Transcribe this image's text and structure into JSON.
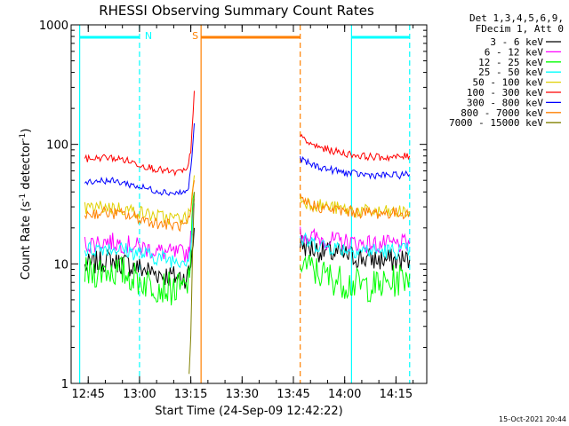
{
  "chart_data": {
    "type": "line",
    "title": "RHESSI Observing Summary Count Rates",
    "xlabel": "Start Time (24-Sep-09 12:42:22)",
    "ylabel": "Count Rate (s",
    "ylabel_sup1": "-1",
    "ylabel_mid": " detector",
    "ylabel_sup2": "-1",
    "ylabel_end": ")",
    "yscale": "log",
    "xlim": [
      "12:40",
      "14:24"
    ],
    "ylim": [
      1,
      1000
    ],
    "x_ticks": [
      "12:45",
      "13:00",
      "13:15",
      "13:30",
      "13:45",
      "14:00",
      "14:15"
    ],
    "y_ticks": [
      {
        "value": 1,
        "label": "1"
      },
      {
        "value": 10,
        "label": "10"
      },
      {
        "value": 100,
        "label": "100"
      },
      {
        "value": 1000,
        "label": "1000"
      }
    ],
    "legend_header": [
      "Det 1,3,4,5,6,9,",
      "FDecim 1, Att 0"
    ],
    "legend_position": "right",
    "data_gap": [
      "13:17",
      "13:47"
    ],
    "series": [
      {
        "name": "3 - 6 keV",
        "color": "#000000",
        "x": [
          "12:44",
          "12:50",
          "12:55",
          "13:00",
          "13:05",
          "13:10",
          "13:14",
          "13:15",
          "13:16",
          "13:47",
          "13:50",
          "13:55",
          "14:00",
          "14:05",
          "14:10",
          "14:15",
          "14:19"
        ],
        "y": [
          9.5,
          10.8,
          10.2,
          9.2,
          8.4,
          7.8,
          7.8,
          10,
          20,
          15,
          13.5,
          12.5,
          11.8,
          11.2,
          10.8,
          10.7,
          10.8
        ]
      },
      {
        "name": "6 - 12 keV",
        "color": "#ff00ff",
        "x": [
          "12:44",
          "12:50",
          "12:55",
          "13:00",
          "13:05",
          "13:10",
          "13:14",
          "13:15",
          "13:16",
          "13:47",
          "13:50",
          "13:55",
          "14:00",
          "14:05",
          "14:10",
          "14:15",
          "14:19"
        ],
        "y": [
          14.5,
          15.5,
          14.8,
          13.8,
          12.8,
          12.2,
          12.3,
          16,
          35,
          18,
          16.8,
          15.8,
          15.2,
          14.8,
          14.5,
          14.5,
          14.7
        ]
      },
      {
        "name": "12 - 25 keV",
        "color": "#00ff00",
        "x": [
          "12:44",
          "12:50",
          "12:55",
          "13:00",
          "13:05",
          "13:10",
          "13:14",
          "13:15",
          "13:16",
          "13:47",
          "13:50",
          "13:55",
          "14:00",
          "14:05",
          "14:10",
          "14:15",
          "14:19"
        ],
        "y": [
          8.2,
          9,
          8.5,
          7.3,
          6.6,
          6.1,
          6.2,
          12,
          40,
          11,
          9,
          7.8,
          7,
          6.6,
          6.5,
          7.2,
          8.2
        ]
      },
      {
        "name": "25 - 50 keV",
        "color": "#00ffff",
        "x": [
          "12:44",
          "12:50",
          "12:55",
          "13:00",
          "13:05",
          "13:10",
          "13:14",
          "13:15",
          "13:16",
          "13:47",
          "13:50",
          "13:55",
          "14:00",
          "14:05",
          "14:10",
          "14:15",
          "14:19"
        ],
        "y": [
          13,
          13.8,
          13.2,
          12.2,
          11.4,
          10.8,
          10.9,
          14,
          32,
          16,
          15,
          14,
          13.4,
          13,
          12.8,
          12.8,
          13
        ]
      },
      {
        "name": "50 - 100 keV",
        "color": "#e0d000",
        "x": [
          "12:44",
          "12:50",
          "12:55",
          "13:00",
          "13:05",
          "13:10",
          "13:14",
          "13:15",
          "13:16",
          "13:47",
          "13:50",
          "13:55",
          "14:00",
          "14:05",
          "14:10",
          "14:15",
          "14:19"
        ],
        "y": [
          29,
          30,
          29,
          27,
          25,
          24,
          24,
          30,
          55,
          35,
          32,
          30,
          28.5,
          27.5,
          27,
          27,
          27.5
        ]
      },
      {
        "name": "100 - 300 keV",
        "color": "#ff0000",
        "x": [
          "12:44",
          "12:50",
          "12:55",
          "13:00",
          "13:05",
          "13:10",
          "13:14",
          "13:15",
          "13:16",
          "13:47",
          "13:50",
          "13:55",
          "14:00",
          "14:05",
          "14:10",
          "14:15",
          "14:19"
        ],
        "y": [
          75,
          78,
          75,
          68,
          62,
          58,
          60,
          90,
          280,
          115,
          100,
          90,
          84,
          80,
          78,
          78,
          80
        ]
      },
      {
        "name": "300 - 800 keV",
        "color": "#0000ff",
        "x": [
          "12:44",
          "12:50",
          "12:55",
          "13:00",
          "13:05",
          "13:10",
          "13:14",
          "13:15",
          "13:16",
          "13:47",
          "13:50",
          "13:55",
          "14:00",
          "14:05",
          "14:10",
          "14:15",
          "14:19"
        ],
        "y": [
          49,
          50,
          48,
          44,
          41,
          39,
          40,
          60,
          150,
          75,
          68,
          62,
          58,
          56,
          55,
          55,
          56
        ]
      },
      {
        "name": "800 - 7000 keV",
        "color": "#ff8000",
        "x": [
          "12:44",
          "12:50",
          "12:55",
          "13:00",
          "13:05",
          "13:10",
          "13:14",
          "13:15",
          "13:16",
          "13:47",
          "13:50",
          "13:55",
          "14:00",
          "14:05",
          "14:10",
          "14:15",
          "14:19"
        ],
        "y": [
          26,
          27,
          26,
          24,
          22,
          21,
          21,
          26,
          50,
          35,
          31,
          29,
          27.5,
          27,
          26.5,
          26.5,
          27
        ]
      },
      {
        "name": "7000 - 15000 keV",
        "color": "#808000",
        "x": [
          "13:14.5",
          "13:15",
          "13:15.5",
          "13:16"
        ],
        "y": [
          1.2,
          2.5,
          12,
          40
        ]
      }
    ],
    "annotations": [
      {
        "label": "N",
        "color": "#00ffff",
        "start": "12:42.5",
        "end": "13:00",
        "line_style": "solid-dashed"
      },
      {
        "label": "",
        "color": "#00ffff",
        "start": "14:02",
        "end": "14:19",
        "line_style": "solid-dashed"
      },
      {
        "label": "S",
        "color": "#ff8000",
        "start": "13:18",
        "end": "13:47",
        "line_style": "solid-dashed"
      }
    ],
    "timestamp": "15-Oct-2021 20:44"
  }
}
